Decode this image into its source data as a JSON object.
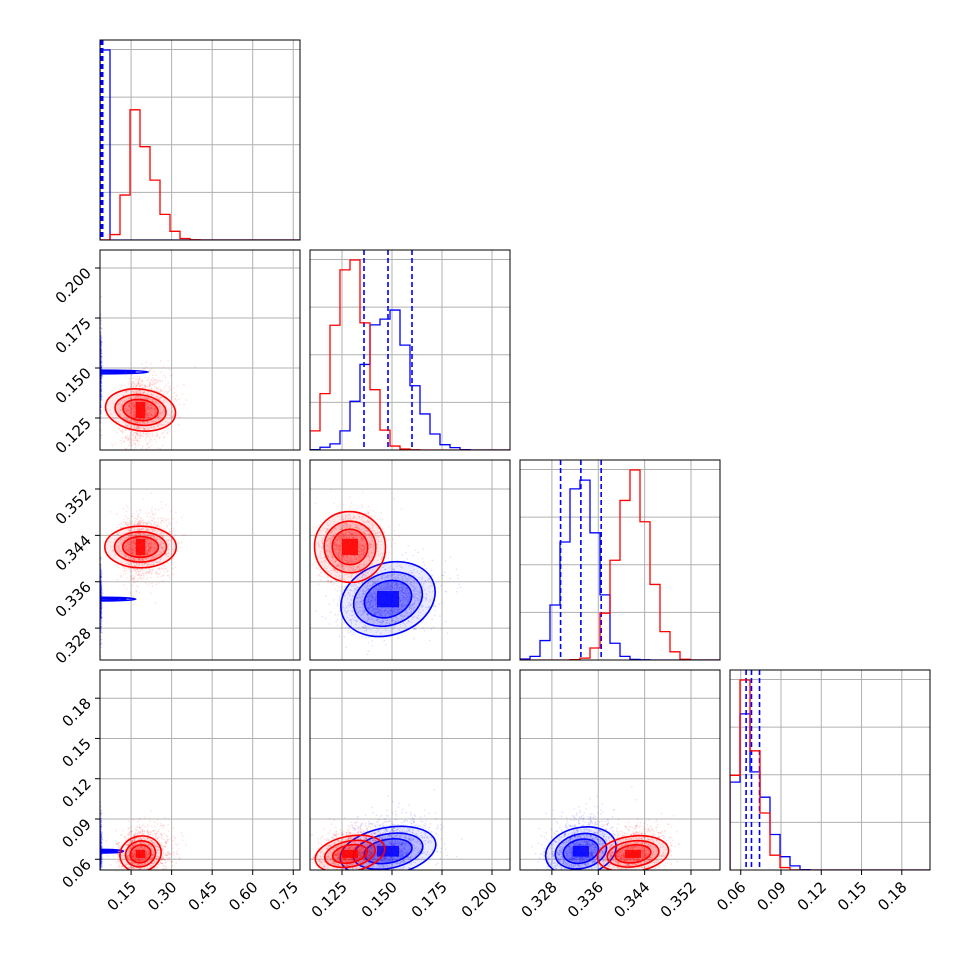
{
  "colors": {
    "red": "#ff0000",
    "blue": "#0000ff",
    "grid": "#b0b0b0"
  },
  "chart_data": {
    "type": "corner",
    "grid": true,
    "legend": "none",
    "parameters": [
      {
        "index": 0,
        "range": [
          0.035,
          0.775
        ],
        "ticks": [
          0.15,
          0.3,
          0.45,
          0.6,
          0.75
        ],
        "tick_labels": [
          "0.15",
          "0.30",
          "0.45",
          "0.60",
          "0.75"
        ]
      },
      {
        "index": 1,
        "range": [
          0.109,
          0.209
        ],
        "ticks": [
          0.125,
          0.15,
          0.175,
          0.2
        ],
        "tick_labels": [
          "0.125",
          "0.150",
          "0.175",
          "0.200"
        ]
      },
      {
        "index": 2,
        "range": [
          0.3225,
          0.357
        ],
        "ticks": [
          0.328,
          0.336,
          0.344,
          0.352
        ],
        "tick_labels": [
          "0.328",
          "0.336",
          "0.344",
          "0.352"
        ]
      },
      {
        "index": 3,
        "range": [
          0.052,
          0.201
        ],
        "ticks": [
          0.06,
          0.09,
          0.12,
          0.15,
          0.18
        ],
        "tick_labels": [
          "0.06",
          "0.09",
          "0.12",
          "0.15",
          "0.18"
        ]
      }
    ],
    "samples": [
      {
        "color": "blue",
        "center": [
          0.035,
          0.148,
          0.333,
          0.066
        ],
        "sd": [
          0.003,
          0.011,
          0.0028,
          0.008
        ],
        "skew_up": [
          0.0,
          0.0,
          0.0,
          0.02
        ],
        "rho": {
          "0-1": 0.0,
          "0-2": 0.0,
          "0-3": 0.0,
          "1-2": 0.25,
          "1-3": 0.3,
          "2-3": 0.2
        },
        "quantiles_1d": [
          [
            0.038,
            0.042,
            0.045
          ],
          [
            0.136,
            0.148,
            0.16
          ],
          [
            0.3295,
            0.333,
            0.3365
          ],
          [
            0.064,
            0.068,
            0.074
          ]
        ]
      },
      {
        "color": "red",
        "center": [
          0.185,
          0.129,
          0.342,
          0.064
        ],
        "sd": [
          0.035,
          0.008,
          0.0028,
          0.006
        ],
        "skew_up": [
          0.1,
          0.0,
          0.0,
          0.02
        ],
        "rho": {
          "0-1": 0.15,
          "0-2": 0.0,
          "0-3": 0.1,
          "1-2": 0.2,
          "1-3": 0.3,
          "2-3": 0.2
        },
        "quantiles_1d": []
      }
    ]
  }
}
